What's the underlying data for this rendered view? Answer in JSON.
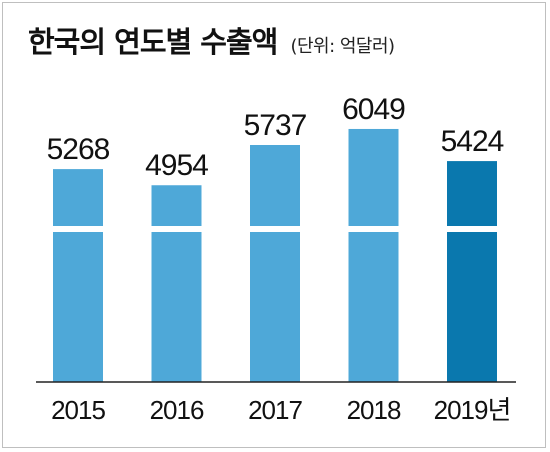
{
  "chart_data": {
    "type": "bar",
    "title": "한국의 연도별 수출액",
    "unit": "(단위: 억달러)",
    "categories": [
      "2015",
      "2016",
      "2017",
      "2018",
      "2019년"
    ],
    "values": [
      5268,
      4954,
      5737,
      6049,
      5424
    ],
    "axis_break": true,
    "highlight_index": 4,
    "colors": {
      "bar": "#4ea8d8",
      "highlight": "#0a78ae",
      "axis": "#222222"
    },
    "grid": false,
    "legend": "none"
  }
}
